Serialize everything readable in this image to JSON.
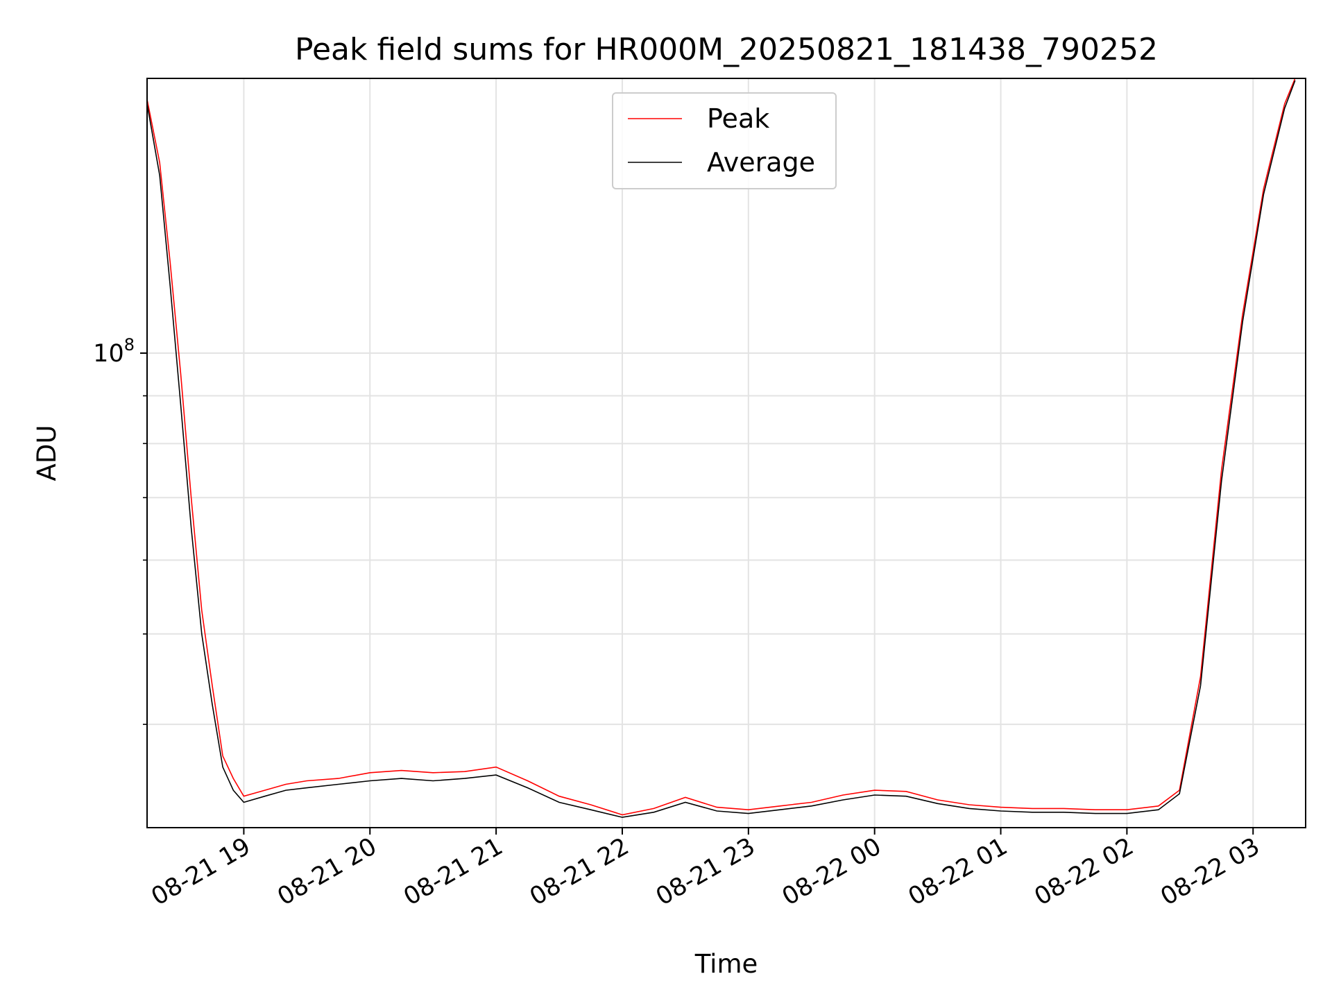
{
  "chart_data": {
    "type": "line",
    "title": "Peak field sums for HR000M_20250821_181438_790252",
    "xlabel": "Time",
    "ylabel": "ADU",
    "y_scale": "log",
    "ylim": [
      31000000,
      197000000
    ],
    "xlim": [
      "2025-08-21 18:14",
      "2025-08-22 03:25"
    ],
    "x_ticks": [
      "08-21 19",
      "08-21 20",
      "08-21 21",
      "08-21 22",
      "08-21 23",
      "08-22 00",
      "08-22 01",
      "08-22 02",
      "08-22 03"
    ],
    "y_ticks": [
      {
        "value": 100000000,
        "base": "10",
        "exp": "8"
      }
    ],
    "grid": true,
    "legend_position": "upper center",
    "series": [
      {
        "name": "Peak",
        "color": "#ff0000",
        "x": [
          "2025-08-21 18:14",
          "2025-08-21 18:20",
          "2025-08-21 18:25",
          "2025-08-21 18:30",
          "2025-08-21 18:35",
          "2025-08-21 18:40",
          "2025-08-21 18:45",
          "2025-08-21 18:50",
          "2025-08-21 18:55",
          "2025-08-21 19:00",
          "2025-08-21 19:10",
          "2025-08-21 19:20",
          "2025-08-21 19:30",
          "2025-08-21 19:45",
          "2025-08-21 20:00",
          "2025-08-21 20:15",
          "2025-08-21 20:30",
          "2025-08-21 20:45",
          "2025-08-21 21:00",
          "2025-08-21 21:15",
          "2025-08-21 21:30",
          "2025-08-21 21:45",
          "2025-08-21 22:00",
          "2025-08-21 22:15",
          "2025-08-21 22:30",
          "2025-08-21 22:45",
          "2025-08-21 23:00",
          "2025-08-21 23:15",
          "2025-08-21 23:30",
          "2025-08-21 23:45",
          "2025-08-22 00:00",
          "2025-08-22 00:15",
          "2025-08-22 00:30",
          "2025-08-22 00:45",
          "2025-08-22 01:00",
          "2025-08-22 01:15",
          "2025-08-22 01:30",
          "2025-08-22 01:45",
          "2025-08-22 02:00",
          "2025-08-22 02:15",
          "2025-08-22 02:25",
          "2025-08-22 02:35",
          "2025-08-22 02:45",
          "2025-08-22 02:55",
          "2025-08-22 03:05",
          "2025-08-22 03:15",
          "2025-08-22 03:20"
        ],
        "y": [
          187000000,
          160000000,
          125000000,
          95000000,
          70000000,
          53000000,
          44000000,
          37000000,
          35000000,
          33500000,
          34000000,
          34500000,
          34800000,
          35000000,
          35500000,
          35700000,
          35500000,
          35600000,
          36000000,
          34800000,
          33500000,
          32800000,
          32000000,
          32500000,
          33400000,
          32600000,
          32400000,
          32700000,
          33000000,
          33600000,
          34000000,
          33900000,
          33200000,
          32800000,
          32600000,
          32500000,
          32500000,
          32400000,
          32400000,
          32700000,
          34000000,
          45000000,
          75000000,
          110000000,
          150000000,
          185000000,
          197000000
        ]
      },
      {
        "name": "Average",
        "color": "#000000",
        "x": [
          "2025-08-21 18:14",
          "2025-08-21 18:20",
          "2025-08-21 18:25",
          "2025-08-21 18:30",
          "2025-08-21 18:35",
          "2025-08-21 18:40",
          "2025-08-21 18:45",
          "2025-08-21 18:50",
          "2025-08-21 18:55",
          "2025-08-21 19:00",
          "2025-08-21 19:10",
          "2025-08-21 19:20",
          "2025-08-21 19:30",
          "2025-08-21 19:45",
          "2025-08-21 20:00",
          "2025-08-21 20:15",
          "2025-08-21 20:30",
          "2025-08-21 20:45",
          "2025-08-21 21:00",
          "2025-08-21 21:15",
          "2025-08-21 21:30",
          "2025-08-21 21:45",
          "2025-08-21 22:00",
          "2025-08-21 22:15",
          "2025-08-21 22:30",
          "2025-08-21 22:45",
          "2025-08-21 23:00",
          "2025-08-21 23:15",
          "2025-08-21 23:30",
          "2025-08-21 23:45",
          "2025-08-22 00:00",
          "2025-08-22 00:15",
          "2025-08-22 00:30",
          "2025-08-22 00:45",
          "2025-08-22 01:00",
          "2025-08-22 01:15",
          "2025-08-22 01:30",
          "2025-08-22 01:45",
          "2025-08-22 02:00",
          "2025-08-22 02:15",
          "2025-08-22 02:25",
          "2025-08-22 02:35",
          "2025-08-22 02:45",
          "2025-08-22 02:55",
          "2025-08-22 03:05",
          "2025-08-22 03:15",
          "2025-08-22 03:20"
        ],
        "y": [
          185000000,
          155000000,
          118000000,
          88000000,
          65000000,
          50000000,
          42000000,
          36000000,
          34000000,
          33000000,
          33500000,
          34000000,
          34200000,
          34500000,
          34800000,
          35000000,
          34800000,
          35000000,
          35300000,
          34200000,
          33000000,
          32400000,
          31800000,
          32200000,
          33000000,
          32300000,
          32100000,
          32400000,
          32700000,
          33200000,
          33600000,
          33500000,
          32900000,
          32500000,
          32300000,
          32200000,
          32200000,
          32100000,
          32100000,
          32400000,
          33700000,
          44000000,
          73000000,
          108000000,
          148000000,
          183000000,
          196000000
        ]
      }
    ]
  }
}
